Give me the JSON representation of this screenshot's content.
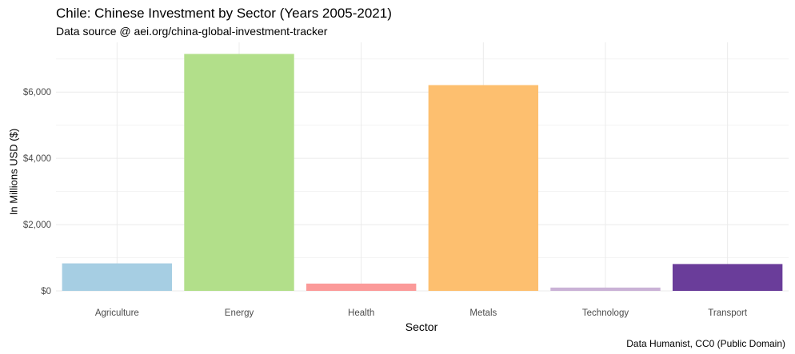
{
  "chart_data": {
    "type": "bar",
    "title": "Chile: Chinese Investment by Sector (Years 2005-2021)",
    "subtitle": "Data source @ aei.org/china-global-investment-tracker",
    "caption": "Data Humanist, CC0 (Public Domain)",
    "xlabel": "Sector",
    "ylabel": "In Millions USD ($)",
    "categories": [
      "Agriculture",
      "Energy",
      "Health",
      "Metals",
      "Technology",
      "Transport"
    ],
    "values": [
      830,
      7150,
      220,
      6210,
      100,
      810
    ],
    "colors": [
      "#a6cee3",
      "#b2df8a",
      "#fb9a99",
      "#fdbf6f",
      "#cab2d6",
      "#6a3d9a"
    ],
    "ylim": [
      0,
      7500
    ],
    "yticks": [
      0,
      2000,
      4000,
      6000
    ],
    "ytick_labels": [
      "$0",
      "$2,000",
      "$4,000",
      "$6,000"
    ],
    "grid": true,
    "legend": "none"
  }
}
